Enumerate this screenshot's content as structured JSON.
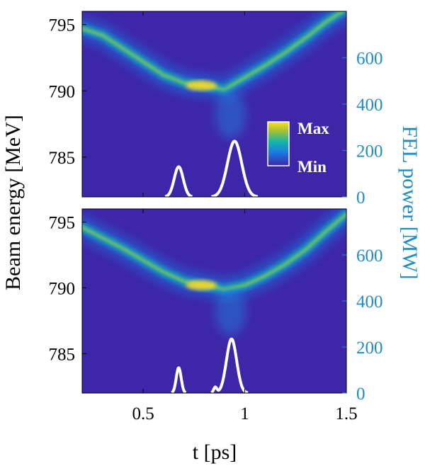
{
  "chart_data": {
    "type": "heatmap",
    "x_axis": {
      "label": "t [ps]",
      "range": [
        0.2,
        1.5
      ],
      "ticks": [
        0.5,
        1,
        1.5
      ],
      "tick_labels": [
        "0.5",
        "1",
        "1.5"
      ]
    },
    "y_axis_left": {
      "label": "Beam energy [MeV]",
      "range": [
        782,
        796
      ],
      "ticks": [
        785,
        790,
        795
      ],
      "tick_labels": [
        "785",
        "790",
        "795"
      ]
    },
    "y_axis_right": {
      "label": "FEL power [MW]",
      "range": [
        0,
        800
      ],
      "ticks": [
        0,
        200,
        400,
        600
      ],
      "tick_labels": [
        "0",
        "200",
        "400",
        "600"
      ],
      "color": "#1f8dc4"
    },
    "colorbar": {
      "max_label": "Max",
      "min_label": "Min",
      "colormap": "parula"
    },
    "panels": [
      {
        "name": "top",
        "energy_ridge": [
          {
            "t": 0.2,
            "e": 794.7
          },
          {
            "t": 0.3,
            "e": 794.2
          },
          {
            "t": 0.4,
            "e": 793.2
          },
          {
            "t": 0.5,
            "e": 792.2
          },
          {
            "t": 0.6,
            "e": 791.2
          },
          {
            "t": 0.7,
            "e": 790.6
          },
          {
            "t": 0.8,
            "e": 790.4
          },
          {
            "t": 0.9,
            "e": 790.1
          },
          {
            "t": 1.0,
            "e": 791.0
          },
          {
            "t": 1.1,
            "e": 791.9
          },
          {
            "t": 1.2,
            "e": 792.9
          },
          {
            "t": 1.3,
            "e": 794.0
          },
          {
            "t": 1.4,
            "e": 795.2
          },
          {
            "t": 1.5,
            "e": 796.2
          }
        ],
        "fel_pulses": [
          {
            "center": 0.675,
            "peak": 130,
            "width": 0.022
          },
          {
            "center": 0.95,
            "peak": 240,
            "width": 0.035
          }
        ]
      },
      {
        "name": "bottom",
        "energy_ridge": [
          {
            "t": 0.2,
            "e": 794.6
          },
          {
            "t": 0.3,
            "e": 793.8
          },
          {
            "t": 0.4,
            "e": 793.0
          },
          {
            "t": 0.5,
            "e": 792.1
          },
          {
            "t": 0.6,
            "e": 791.2
          },
          {
            "t": 0.7,
            "e": 790.5
          },
          {
            "t": 0.8,
            "e": 790.2
          },
          {
            "t": 0.9,
            "e": 789.9
          },
          {
            "t": 1.0,
            "e": 790.2
          },
          {
            "t": 1.1,
            "e": 790.9
          },
          {
            "t": 1.2,
            "e": 791.8
          },
          {
            "t": 1.3,
            "e": 792.9
          },
          {
            "t": 1.4,
            "e": 794.3
          },
          {
            "t": 1.5,
            "e": 795.6
          }
        ],
        "fel_pulses": [
          {
            "center": 0.675,
            "peak": 110,
            "width": 0.012
          },
          {
            "center": 0.855,
            "peak": 25,
            "width": 0.008
          },
          {
            "center": 0.935,
            "peak": 235,
            "width": 0.025
          }
        ]
      }
    ]
  }
}
